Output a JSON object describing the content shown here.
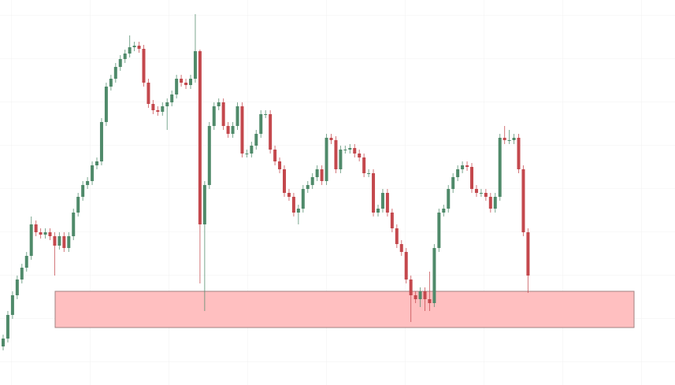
{
  "chart_data": {
    "type": "candlestick",
    "ylim": [
      0,
      489
    ],
    "up_color": "#4f8a6a",
    "down_color": "#c4484d",
    "open": [
      49,
      59,
      89,
      114,
      134,
      149,
      164,
      204,
      194,
      191,
      194,
      189,
      177,
      189,
      174,
      189,
      219,
      239,
      254,
      259,
      279,
      284,
      334,
      379,
      389,
      404,
      414,
      421,
      429,
      431,
      427,
      384,
      357,
      349,
      347,
      354,
      359,
      369,
      389,
      384,
      381,
      389,
      424,
      204,
      254,
      329,
      354,
      359,
      329,
      319,
      329,
      354,
      294,
      294,
      304,
      319,
      344,
      344,
      299,
      284,
      274,
      244,
      239,
      219,
      224,
      249,
      254,
      264,
      274,
      259,
      314,
      311,
      274,
      299,
      299,
      301,
      294,
      289,
      269,
      269,
      219,
      224,
      244,
      219,
      199,
      179,
      169,
      134,
      114,
      109,
      119,
      109,
      104,
      174,
      219,
      224,
      249,
      264,
      274,
      279,
      277,
      249,
      244,
      244,
      239,
      224,
      239,
      314,
      311,
      311,
      314,
      274,
      194
    ],
    "high": [
      64,
      94,
      119,
      139,
      154,
      169,
      214,
      209,
      199,
      199,
      199,
      194,
      194,
      194,
      194,
      224,
      244,
      259,
      264,
      284,
      289,
      339,
      384,
      394,
      409,
      419,
      426,
      444,
      436,
      436,
      432,
      389,
      362,
      354,
      359,
      364,
      374,
      394,
      394,
      389,
      394,
      471,
      426,
      259,
      334,
      359,
      364,
      364,
      334,
      334,
      359,
      359,
      299,
      309,
      324,
      349,
      349,
      349,
      304,
      289,
      279,
      249,
      244,
      229,
      254,
      259,
      269,
      279,
      279,
      319,
      319,
      316,
      304,
      304,
      306,
      306,
      299,
      294,
      274,
      274,
      229,
      249,
      249,
      224,
      204,
      184,
      174,
      139,
      119,
      124,
      124,
      144,
      179,
      224,
      229,
      254,
      269,
      279,
      284,
      284,
      282,
      254,
      249,
      249,
      244,
      244,
      319,
      329,
      324,
      319,
      319,
      279,
      199
    ],
    "low": [
      44,
      54,
      84,
      109,
      129,
      144,
      159,
      189,
      186,
      186,
      184,
      139,
      172,
      169,
      169,
      184,
      214,
      234,
      249,
      254,
      274,
      279,
      329,
      374,
      384,
      399,
      409,
      416,
      424,
      422,
      379,
      352,
      344,
      342,
      342,
      324,
      354,
      364,
      379,
      376,
      376,
      384,
      129,
      94,
      249,
      324,
      349,
      324,
      314,
      314,
      324,
      289,
      289,
      289,
      299,
      314,
      339,
      294,
      279,
      269,
      239,
      234,
      214,
      204,
      219,
      244,
      249,
      259,
      254,
      254,
      306,
      269,
      269,
      294,
      294,
      289,
      284,
      264,
      264,
      214,
      214,
      219,
      214,
      194,
      174,
      164,
      129,
      80,
      104,
      99,
      94,
      94,
      99,
      169,
      214,
      219,
      244,
      259,
      269,
      272,
      244,
      239,
      239,
      234,
      219,
      219,
      234,
      306,
      306,
      306,
      269,
      189,
      117
    ],
    "close": [
      59,
      89,
      114,
      134,
      149,
      164,
      204,
      194,
      191,
      194,
      189,
      177,
      189,
      174,
      189,
      219,
      239,
      254,
      259,
      279,
      284,
      334,
      379,
      389,
      404,
      414,
      421,
      429,
      431,
      427,
      384,
      357,
      349,
      347,
      354,
      359,
      369,
      389,
      384,
      381,
      389,
      424,
      204,
      254,
      329,
      354,
      359,
      329,
      319,
      329,
      354,
      294,
      294,
      304,
      319,
      344,
      344,
      299,
      284,
      274,
      244,
      239,
      219,
      224,
      249,
      254,
      264,
      274,
      259,
      314,
      311,
      274,
      299,
      299,
      301,
      294,
      289,
      269,
      269,
      219,
      224,
      244,
      219,
      199,
      179,
      169,
      134,
      114,
      109,
      119,
      109,
      104,
      174,
      219,
      224,
      249,
      264,
      274,
      279,
      277,
      249,
      244,
      244,
      239,
      224,
      239,
      314,
      311,
      311,
      314,
      274,
      194,
      139
    ],
    "zone": {
      "low": 73,
      "high": 119,
      "color": "#ffbcbd"
    }
  }
}
